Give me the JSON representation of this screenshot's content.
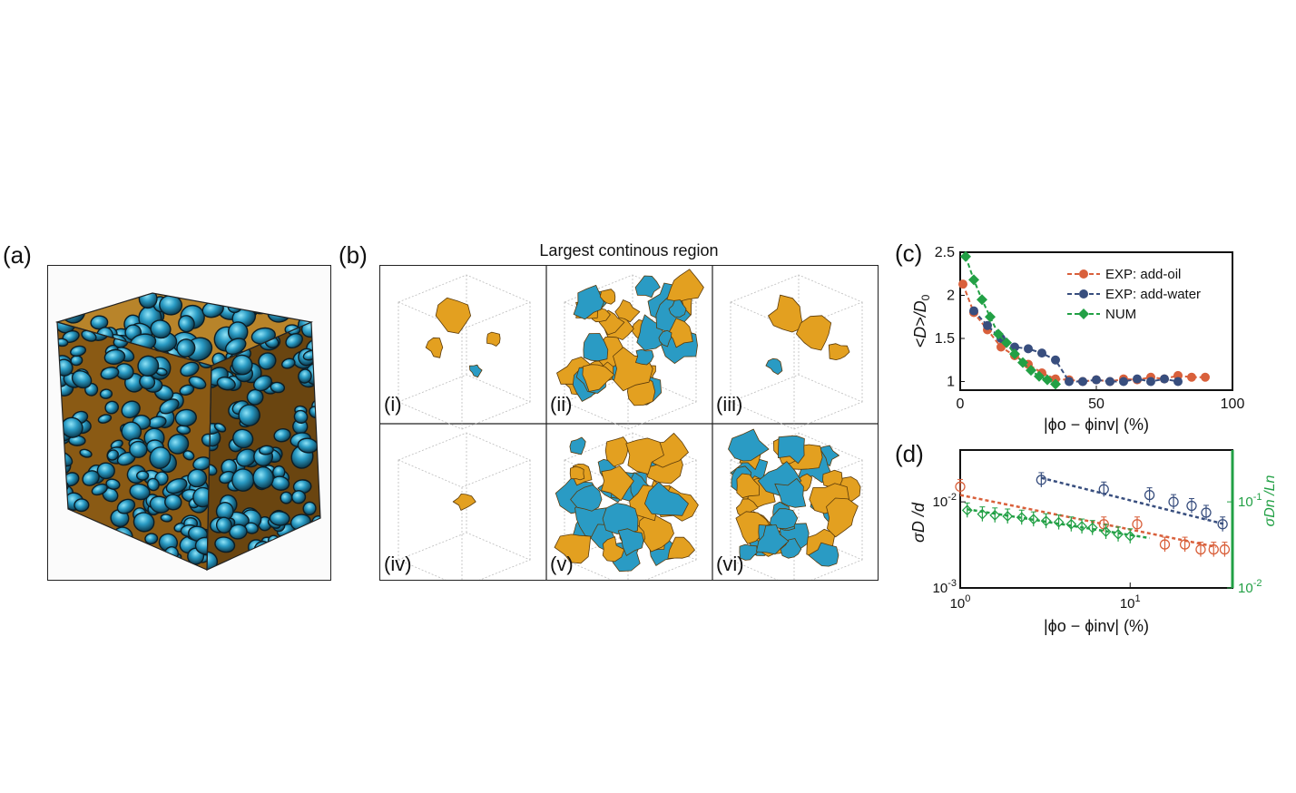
{
  "figure": {
    "labels": {
      "a": "(a)",
      "b": "(b)",
      "c": "(c)",
      "d": "(d)"
    },
    "panel_b_title": "Largest continous region",
    "subpanels": [
      "(i)",
      "(ii)",
      "(iii)",
      "(iv)",
      "(v)",
      "(vi)"
    ],
    "colors": {
      "blue": "#2a9bc4",
      "orange": "#e3a020",
      "red": "#d9603b",
      "navy": "#384e7e",
      "green": "#22a045"
    }
  },
  "chart_data": [
    {
      "id": "c",
      "type": "line",
      "ylabel": "<D>/D0",
      "ylabel_main": "<D>/D",
      "ylabel_sub": "0",
      "xlabel": "|ϕo − ϕinv| (%)",
      "xlim": [
        0,
        100
      ],
      "ylim": [
        0.9,
        2.5
      ],
      "xticks": [
        "0",
        "50",
        "100"
      ],
      "yticks": [
        "1",
        "1.5",
        "2",
        "2.5"
      ],
      "legend_position": "top-right",
      "series": [
        {
          "name": "EXP: add-oil",
          "color": "#d9603b",
          "marker": "circle",
          "x": [
            1,
            5,
            10,
            15,
            20,
            25,
            30,
            35,
            40,
            45,
            50,
            55,
            60,
            65,
            70,
            75,
            80,
            85,
            90
          ],
          "y": [
            2.13,
            1.8,
            1.6,
            1.4,
            1.3,
            1.2,
            1.1,
            1.03,
            1.02,
            1.0,
            1.02,
            1.0,
            1.03,
            1.02,
            1.05,
            1.03,
            1.07,
            1.05,
            1.05
          ]
        },
        {
          "name": "EXP: add-water",
          "color": "#384e7e",
          "marker": "circle",
          "x": [
            5,
            10,
            15,
            20,
            25,
            30,
            35,
            40,
            45,
            50,
            55,
            60,
            65,
            70,
            75,
            80
          ],
          "y": [
            1.82,
            1.65,
            1.5,
            1.4,
            1.38,
            1.33,
            1.25,
            1.0,
            1.0,
            1.02,
            1.0,
            1.0,
            1.03,
            1.0,
            1.03,
            1.0
          ]
        },
        {
          "name": "NUM",
          "color": "#22a045",
          "marker": "diamond",
          "x": [
            2,
            5,
            8,
            11,
            14,
            17,
            20,
            23,
            26,
            29,
            32,
            35
          ],
          "y": [
            2.45,
            2.18,
            1.95,
            1.75,
            1.55,
            1.45,
            1.32,
            1.22,
            1.13,
            1.06,
            1.02,
            0.97
          ]
        }
      ]
    },
    {
      "id": "d",
      "type": "scatter",
      "ylabel": "σD /d",
      "ylabel_right": "σDn /Ln",
      "xlabel": "|ϕo − ϕinv| (%)",
      "xscale": "log",
      "yscale": "log",
      "xlim": [
        1,
        40
      ],
      "ylim": [
        0.001,
        0.04
      ],
      "ylim_right": [
        0.01,
        0.4
      ],
      "xticks": [
        "10^0",
        "10^1"
      ],
      "yticks": [
        "10^-3",
        "10^-2"
      ],
      "yticks_right": [
        "10^-2",
        "10^-1"
      ],
      "series": [
        {
          "name": "EXP: add-oil",
          "color": "#d9603b",
          "marker": "circle",
          "x": [
            1,
            7,
            11,
            16,
            21,
            26,
            31,
            36
          ],
          "y": [
            0.015,
            0.0055,
            0.0055,
            0.0032,
            0.0032,
            0.0028,
            0.0028,
            0.0028
          ],
          "fit": {
            "x": [
              1,
              32
            ],
            "y": [
              0.012,
              0.003
            ]
          }
        },
        {
          "name": "EXP: add-water",
          "color": "#384e7e",
          "marker": "circle",
          "x": [
            3,
            7,
            13,
            18,
            23,
            28,
            35
          ],
          "y": [
            0.018,
            0.014,
            0.012,
            0.01,
            0.009,
            0.0075,
            0.0055
          ],
          "fit": {
            "x": [
              3,
              36
            ],
            "y": [
              0.019,
              0.0055
            ]
          }
        },
        {
          "name": "NUM",
          "color": "#22a045",
          "marker": "diamond",
          "axis": "right",
          "x": [
            1.1,
            1.35,
            1.6,
            1.9,
            2.3,
            2.7,
            3.2,
            3.8,
            4.5,
            5.2,
            6.0,
            7.2,
            8.5,
            10
          ],
          "y": [
            0.08,
            0.072,
            0.07,
            0.068,
            0.066,
            0.063,
            0.06,
            0.058,
            0.055,
            0.052,
            0.05,
            0.045,
            0.042,
            0.04
          ],
          "fit": {
            "x": [
              1.1,
              13
            ],
            "y": [
              0.082,
              0.038
            ]
          }
        }
      ]
    }
  ]
}
